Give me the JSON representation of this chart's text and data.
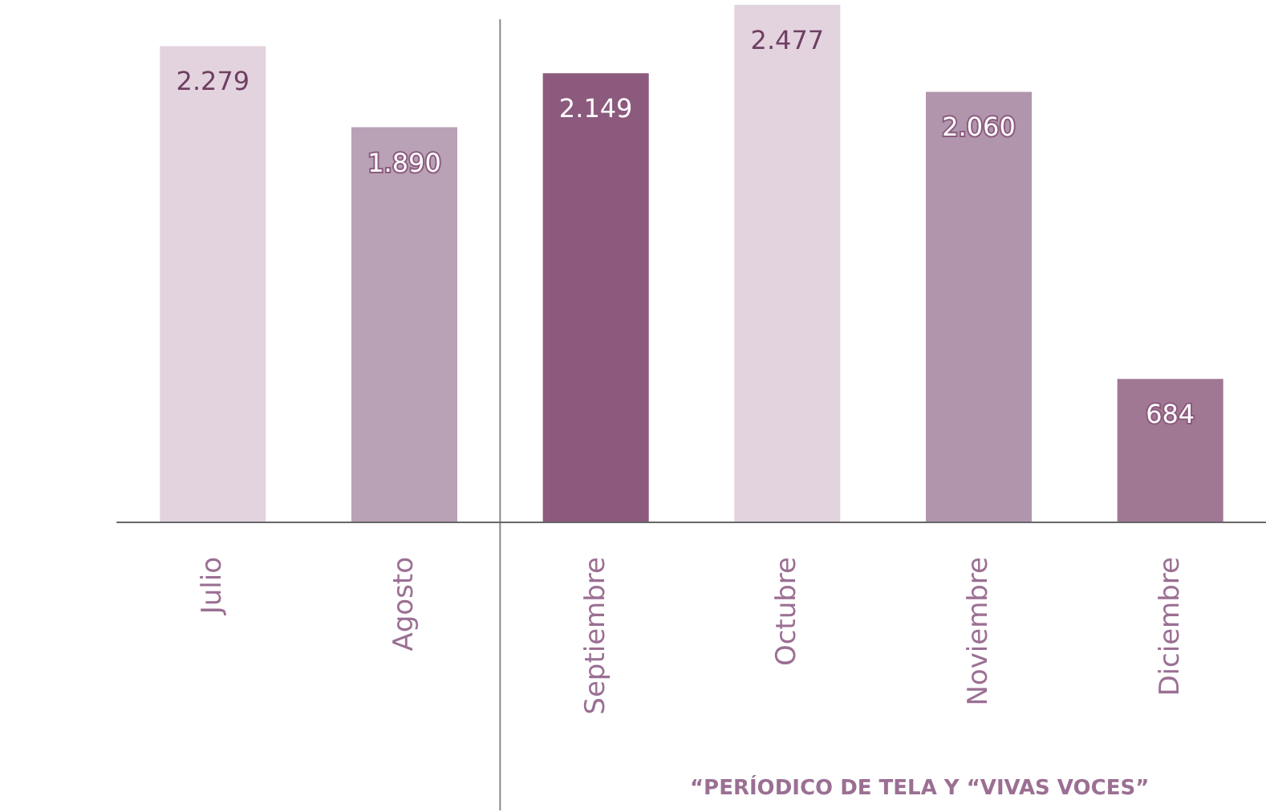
{
  "chart_data": {
    "type": "bar",
    "categories": [
      "Julio",
      "Agosto",
      "Septiembre",
      "Octubre",
      "Noviembre",
      "Diciembre"
    ],
    "values": [
      2279,
      1890,
      2149,
      2477,
      2060,
      684
    ],
    "value_labels": [
      "2.279",
      "1.890",
      "2.149",
      "2.477",
      "2.060",
      "684"
    ],
    "colors": [
      "#e3d3df",
      "#b9a1b6",
      "#8c5a7d",
      "#e3d3df",
      "#b095ad",
      "#a07894"
    ],
    "annotations": [
      "“PERÍODICO DE TELA Y “VIVAS VOCES”"
    ],
    "grid": false
  }
}
